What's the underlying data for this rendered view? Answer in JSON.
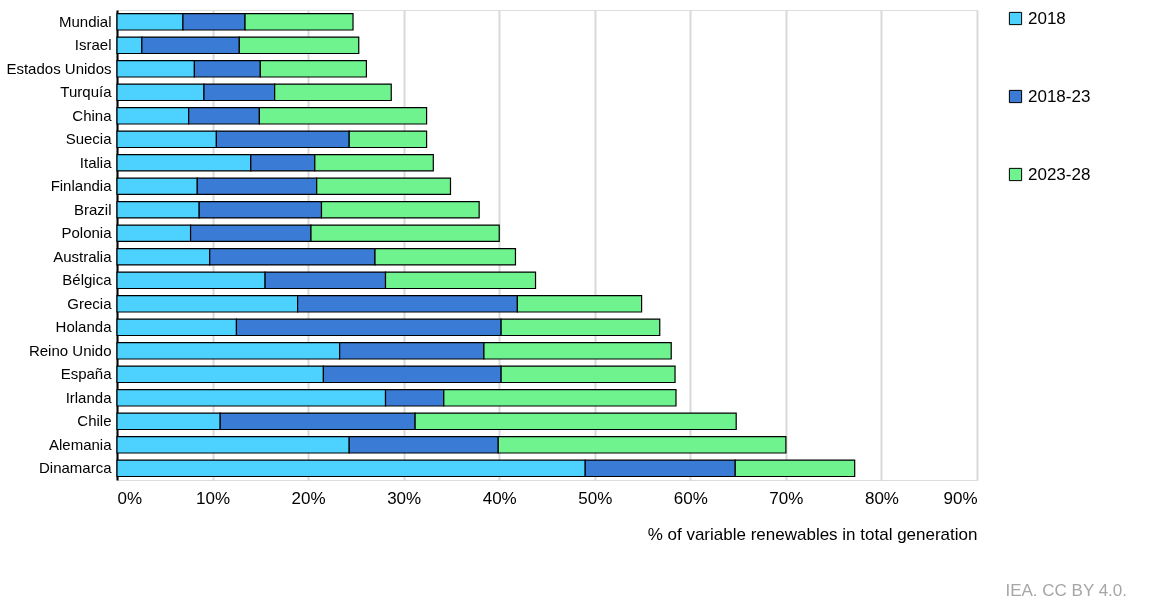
{
  "chart_data": {
    "type": "bar",
    "orientation": "horizontal",
    "stacked": true,
    "categories": [
      "Mundial",
      "Israel",
      "Estados Unidos",
      "Turquía",
      "China",
      "Suecia",
      "Italia",
      "Finlandia",
      "Brazil",
      "Polonia",
      "Australia",
      "Bélgica",
      "Grecia",
      "Holanda",
      "Reino Unido",
      "España",
      "Irlanda",
      "Chile",
      "Alemania",
      "Dinamarca"
    ],
    "series": [
      {
        "name": "2018",
        "color": "#4dd2ff",
        "values": [
          6.9,
          2.6,
          8.1,
          9.1,
          7.5,
          10.4,
          14.0,
          8.4,
          8.6,
          7.7,
          9.7,
          15.5,
          18.9,
          12.5,
          23.3,
          21.6,
          28.1,
          10.8,
          24.3,
          49.0
        ]
      },
      {
        "name": "2018-23",
        "color": "#3a7bd5",
        "values": [
          6.5,
          10.2,
          6.9,
          7.4,
          7.4,
          13.9,
          6.7,
          12.5,
          12.8,
          12.6,
          17.3,
          12.6,
          23.0,
          27.7,
          15.1,
          18.6,
          6.1,
          20.4,
          15.6,
          15.7
        ]
      },
      {
        "name": "2023-28",
        "color": "#6ef38f",
        "values": [
          11.3,
          12.5,
          11.1,
          12.2,
          17.5,
          8.1,
          12.4,
          14.0,
          16.5,
          19.7,
          14.7,
          15.7,
          13.0,
          16.6,
          19.6,
          18.2,
          24.3,
          33.6,
          30.1,
          12.5
        ]
      }
    ],
    "xlim": [
      0,
      90
    ],
    "xticks": [
      {
        "value": 0,
        "label": "0%"
      },
      {
        "value": 10,
        "label": "10%"
      },
      {
        "value": 20,
        "label": "20%"
      },
      {
        "value": 30,
        "label": "30%"
      },
      {
        "value": 40,
        "label": "40%"
      },
      {
        "value": 50,
        "label": "50%"
      },
      {
        "value": 60,
        "label": "60%"
      },
      {
        "value": 70,
        "label": "70%"
      },
      {
        "value": 80,
        "label": "80%"
      },
      {
        "value": 90,
        "label": "90%"
      }
    ],
    "xlabel": "% of variable renewables in total generation",
    "grid": "x",
    "legend": "right",
    "annotations": [
      "IEA. CC BY 4.0."
    ]
  }
}
